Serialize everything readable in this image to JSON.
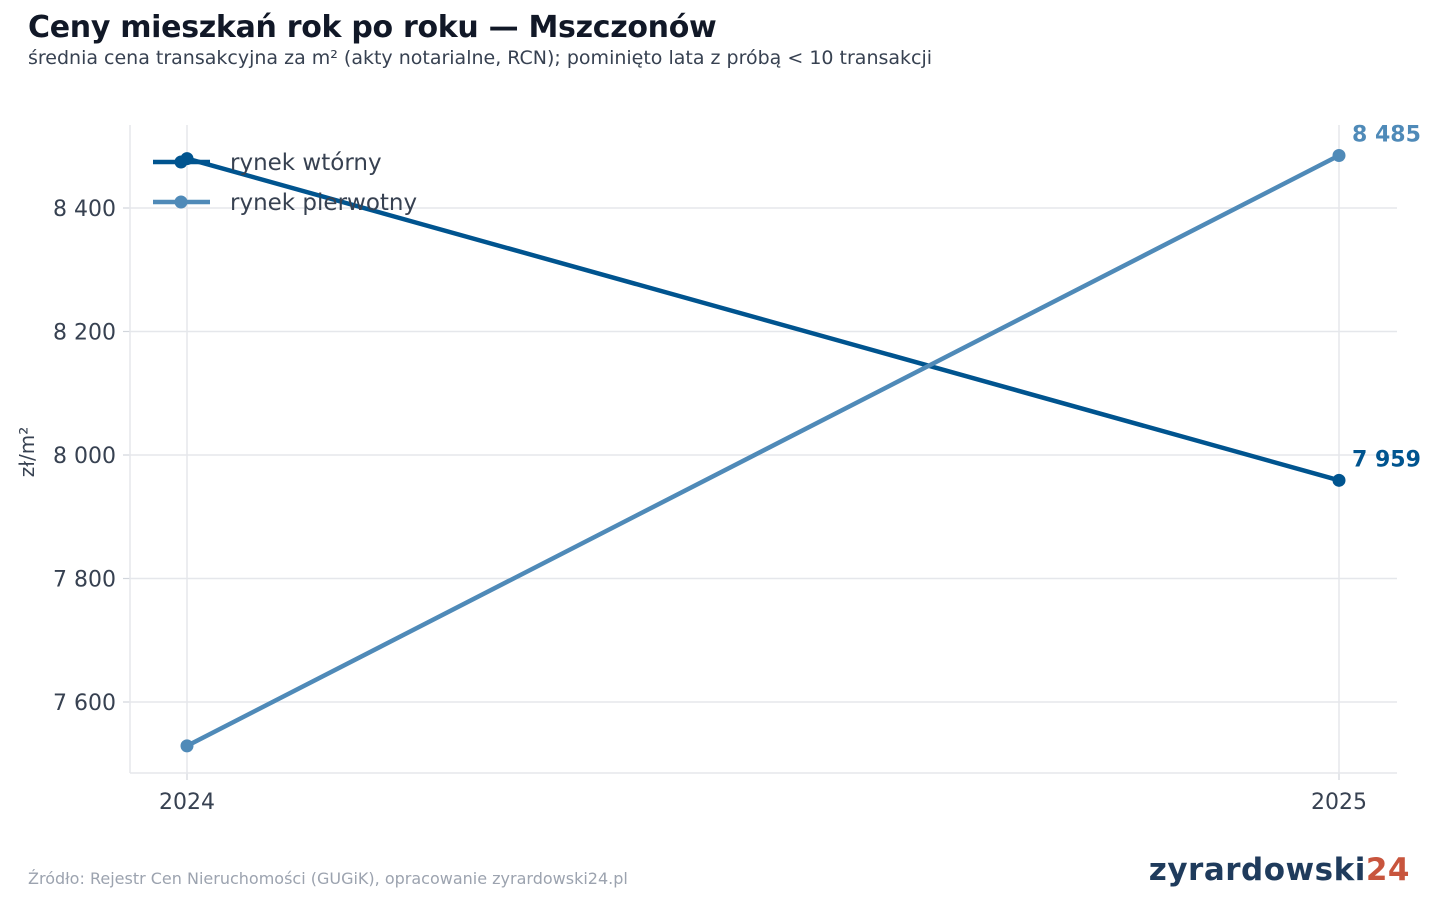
{
  "header": {
    "title": "Ceny mieszkań rok po roku — Mszczonów",
    "subtitle": "średnia cena transakcyjna za m² (akty notarialne, RCN); pominięto lata z próbą < 10 transakcji"
  },
  "footer": {
    "source": "Źródło: Rejestr Cen Nieruchomości (GUGiK), opracowanie zyrardowski24.pl",
    "brand_main": "zyrardowski",
    "brand_num": "24"
  },
  "chart_data": {
    "type": "line",
    "x": [
      "2024",
      "2025"
    ],
    "ylabel": "zł/m²",
    "ylim": [
      7490,
      8535
    ],
    "yticks": [
      7600,
      7800,
      8000,
      8200,
      8400
    ],
    "ytick_labels": [
      "7 600",
      "7 800",
      "8 000",
      "8 200",
      "8 400"
    ],
    "grid": true,
    "legend_position": "top-left",
    "series": [
      {
        "name": "rynek wtórny",
        "values": [
          8480,
          7959
        ],
        "color": "#00548f",
        "end_label": "7 959"
      },
      {
        "name": "rynek pierwotny",
        "values": [
          7529,
          8485
        ],
        "color": "#4f8ab8",
        "end_label": "8 485"
      }
    ]
  }
}
